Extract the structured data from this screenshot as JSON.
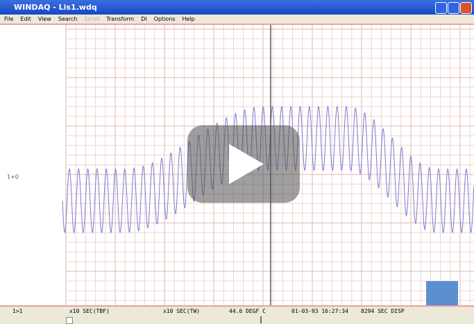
{
  "window": {
    "title": "WINDAQ - Lis1.wdq"
  },
  "menu": [
    "File",
    "Edit",
    "View",
    "Search",
    "Scroll",
    "Transform",
    "DI",
    "Options",
    "Help"
  ],
  "channel_label": "1+0",
  "status_bar": [
    "1>1",
    "x10 SEC(TBF)",
    "x10 SEC(TW)",
    "44.6 DEGF C",
    "01-03-93 16:27:34",
    "8294 SEC DISP"
  ]
}
